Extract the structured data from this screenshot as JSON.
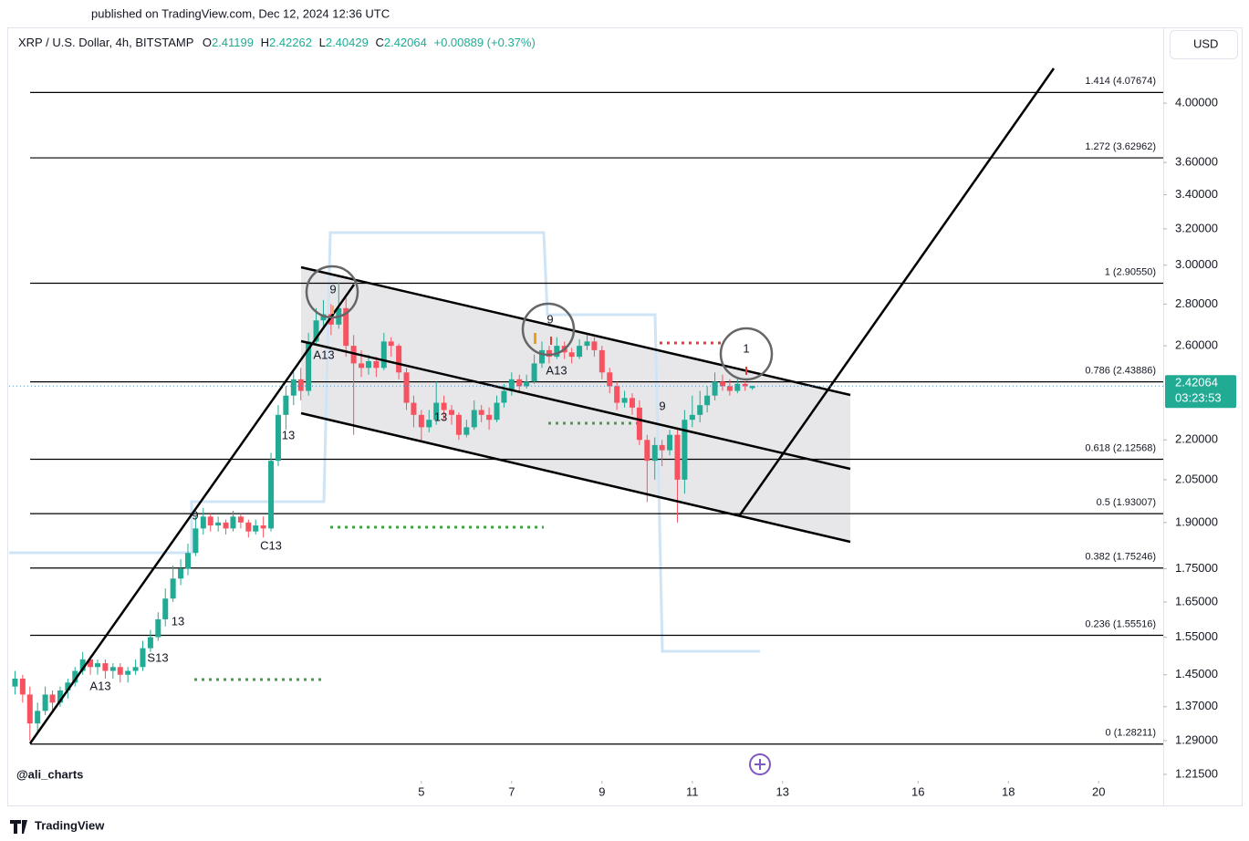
{
  "header": {
    "published": "published on TradingView.com, Dec 12, 2024 12:36 UTC"
  },
  "chart_data": {
    "type": "candlestick",
    "symbol": "XRP / U.S. Dollar, 4h, BITSTAMP",
    "ohlc_letters": [
      "O",
      "H",
      "L",
      "C"
    ],
    "change_label": "+0.00889 (+0.37%)",
    "currency": "USD",
    "countdown": "03:23:53",
    "up_color": "#22ab94",
    "down_color": "#f7525f",
    "log_scale": true,
    "grid": false,
    "xlim": [
      -4.13,
      21.43
    ],
    "xticks": [
      5,
      7,
      9,
      11,
      13,
      16,
      18,
      20
    ],
    "ylim": [
      1.209,
      4.359
    ],
    "yticks": [
      {
        "value": 4,
        "label": "4.00000"
      },
      {
        "value": 3.6,
        "label": "3.60000"
      },
      {
        "value": 3.4,
        "label": "3.40000"
      },
      {
        "value": 3.2,
        "label": "3.20000"
      },
      {
        "value": 3,
        "label": "3.00000"
      },
      {
        "value": 2.8,
        "label": "2.80000"
      },
      {
        "value": 2.6,
        "label": "2.60000"
      },
      {
        "value": 2.2,
        "label": "2.20000"
      },
      {
        "value": 2.05,
        "label": "2.05000"
      },
      {
        "value": 1.9,
        "label": "1.90000"
      },
      {
        "value": 1.75,
        "label": "1.75000"
      },
      {
        "value": 1.65,
        "label": "1.65000"
      },
      {
        "value": 1.55,
        "label": "1.55000"
      },
      {
        "value": 1.45,
        "label": "1.45000"
      },
      {
        "value": 1.37,
        "label": "1.37000"
      },
      {
        "value": 1.29,
        "label": "1.29000"
      },
      {
        "value": 1.215,
        "label": "1.21500"
      }
    ],
    "x": [
      -4,
      -3.83,
      -3.67,
      -3.5,
      -3.33,
      -3.17,
      -3,
      -2.83,
      -2.67,
      -2.5,
      -2.33,
      -2.17,
      -2,
      -1.83,
      -1.67,
      -1.5,
      -1.33,
      -1.17,
      -1,
      -0.83,
      -0.67,
      -0.5,
      -0.33,
      -0.17,
      0,
      0.17,
      0.33,
      0.5,
      0.67,
      0.83,
      1,
      1.17,
      1.33,
      1.5,
      1.67,
      1.83,
      2,
      2.17,
      2.33,
      2.5,
      2.67,
      2.83,
      3,
      3.17,
      3.33,
      3.5,
      3.67,
      3.83,
      4,
      4.17,
      4.33,
      4.5,
      4.67,
      4.83,
      5,
      5.17,
      5.33,
      5.5,
      5.67,
      5.83,
      6,
      6.17,
      6.33,
      6.5,
      6.67,
      6.83,
      7,
      7.17,
      7.33,
      7.5,
      7.67,
      7.83,
      8,
      8.17,
      8.33,
      8.5,
      8.67,
      8.83,
      9,
      9.17,
      9.33,
      9.5,
      9.67,
      9.83,
      10,
      10.17,
      10.33,
      10.5,
      10.67,
      10.83,
      11,
      11.17,
      11.33,
      11.5,
      11.67,
      11.83,
      12,
      12.17,
      12.33
    ],
    "candles": [
      [
        1.42,
        1.46,
        1.4,
        1.44
      ],
      [
        1.44,
        1.45,
        1.38,
        1.4
      ],
      [
        1.4,
        1.42,
        1.29,
        1.33
      ],
      [
        1.33,
        1.38,
        1.31,
        1.36
      ],
      [
        1.36,
        1.42,
        1.35,
        1.4
      ],
      [
        1.4,
        1.41,
        1.36,
        1.38
      ],
      [
        1.38,
        1.42,
        1.37,
        1.41
      ],
      [
        1.41,
        1.44,
        1.39,
        1.43
      ],
      [
        1.43,
        1.47,
        1.42,
        1.46
      ],
      [
        1.46,
        1.51,
        1.45,
        1.49
      ],
      [
        1.49,
        1.5,
        1.45,
        1.47
      ],
      [
        1.47,
        1.49,
        1.45,
        1.48
      ],
      [
        1.48,
        1.49,
        1.44,
        1.46
      ],
      [
        1.46,
        1.48,
        1.44,
        1.47
      ],
      [
        1.47,
        1.48,
        1.43,
        1.45
      ],
      [
        1.45,
        1.47,
        1.43,
        1.46
      ],
      [
        1.46,
        1.49,
        1.45,
        1.47
      ],
      [
        1.47,
        1.54,
        1.46,
        1.52
      ],
      [
        1.52,
        1.57,
        1.51,
        1.55
      ],
      [
        1.55,
        1.62,
        1.54,
        1.6
      ],
      [
        1.6,
        1.69,
        1.58,
        1.66
      ],
      [
        1.66,
        1.76,
        1.65,
        1.72
      ],
      [
        1.72,
        1.78,
        1.7,
        1.75
      ],
      [
        1.75,
        1.83,
        1.73,
        1.8
      ],
      [
        1.8,
        1.92,
        1.79,
        1.88
      ],
      [
        1.88,
        1.95,
        1.86,
        1.92
      ],
      [
        1.92,
        1.93,
        1.87,
        1.89
      ],
      [
        1.89,
        1.92,
        1.87,
        1.9
      ],
      [
        1.9,
        1.91,
        1.86,
        1.88
      ],
      [
        1.88,
        1.94,
        1.87,
        1.92
      ],
      [
        1.92,
        1.93,
        1.88,
        1.9
      ],
      [
        1.9,
        1.91,
        1.85,
        1.87
      ],
      [
        1.87,
        1.91,
        1.86,
        1.89
      ],
      [
        1.89,
        1.92,
        1.85,
        1.88
      ],
      [
        1.88,
        2.15,
        1.87,
        2.12
      ],
      [
        2.12,
        2.34,
        2.1,
        2.3
      ],
      [
        2.3,
        2.42,
        2.24,
        2.38
      ],
      [
        2.38,
        2.48,
        2.34,
        2.45
      ],
      [
        2.45,
        2.5,
        2.36,
        2.4
      ],
      [
        2.4,
        2.66,
        2.38,
        2.62
      ],
      [
        2.62,
        2.78,
        2.6,
        2.72
      ],
      [
        2.72,
        2.82,
        2.68,
        2.75
      ],
      [
        2.75,
        2.8,
        2.65,
        2.7
      ],
      [
        2.7,
        2.91,
        2.68,
        2.78
      ],
      [
        2.78,
        2.84,
        2.55,
        2.6
      ],
      [
        2.6,
        2.65,
        2.22,
        2.52
      ],
      [
        2.52,
        2.58,
        2.46,
        2.5
      ],
      [
        2.5,
        2.56,
        2.47,
        2.53
      ],
      [
        2.53,
        2.55,
        2.46,
        2.5
      ],
      [
        2.5,
        2.66,
        2.49,
        2.62
      ],
      [
        2.62,
        2.64,
        2.55,
        2.6
      ],
      [
        2.6,
        2.61,
        2.45,
        2.48
      ],
      [
        2.48,
        2.5,
        2.32,
        2.35
      ],
      [
        2.35,
        2.38,
        2.25,
        2.3
      ],
      [
        2.3,
        2.32,
        2.19,
        2.25
      ],
      [
        2.25,
        2.32,
        2.23,
        2.28
      ],
      [
        2.28,
        2.44,
        2.26,
        2.35
      ],
      [
        2.35,
        2.38,
        2.28,
        2.32
      ],
      [
        2.32,
        2.34,
        2.26,
        2.3
      ],
      [
        2.3,
        2.31,
        2.2,
        2.22
      ],
      [
        2.22,
        2.28,
        2.21,
        2.25
      ],
      [
        2.25,
        2.36,
        2.24,
        2.32
      ],
      [
        2.32,
        2.34,
        2.27,
        2.3
      ],
      [
        2.3,
        2.33,
        2.24,
        2.28
      ],
      [
        2.28,
        2.38,
        2.27,
        2.35
      ],
      [
        2.35,
        2.43,
        2.33,
        2.4
      ],
      [
        2.4,
        2.48,
        2.38,
        2.45
      ],
      [
        2.45,
        2.47,
        2.4,
        2.42
      ],
      [
        2.42,
        2.47,
        2.41,
        2.44
      ],
      [
        2.44,
        2.56,
        2.43,
        2.52
      ],
      [
        2.52,
        2.62,
        2.5,
        2.58
      ],
      [
        2.58,
        2.6,
        2.52,
        2.55
      ],
      [
        2.55,
        2.64,
        2.54,
        2.6
      ],
      [
        2.6,
        2.62,
        2.54,
        2.57
      ],
      [
        2.57,
        2.59,
        2.52,
        2.55
      ],
      [
        2.55,
        2.63,
        2.54,
        2.6
      ],
      [
        2.6,
        2.66,
        2.58,
        2.62
      ],
      [
        2.62,
        2.64,
        2.55,
        2.58
      ],
      [
        2.58,
        2.6,
        2.45,
        2.48
      ],
      [
        2.48,
        2.5,
        2.39,
        2.42
      ],
      [
        2.42,
        2.44,
        2.32,
        2.35
      ],
      [
        2.35,
        2.4,
        2.33,
        2.37
      ],
      [
        2.37,
        2.39,
        2.3,
        2.33
      ],
      [
        2.33,
        2.36,
        2.18,
        2.2
      ],
      [
        2.2,
        2.22,
        1.97,
        2.12
      ],
      [
        2.12,
        2.21,
        2.05,
        2.18
      ],
      [
        2.18,
        2.2,
        2.1,
        2.16
      ],
      [
        2.16,
        2.24,
        2.14,
        2.22
      ],
      [
        2.22,
        2.25,
        1.9,
        2.05
      ],
      [
        2.05,
        2.32,
        2,
        2.28
      ],
      [
        2.28,
        2.38,
        2.25,
        2.3
      ],
      [
        2.3,
        2.4,
        2.27,
        2.34
      ],
      [
        2.34,
        2.42,
        2.31,
        2.38
      ],
      [
        2.38,
        2.48,
        2.36,
        2.44
      ],
      [
        2.44,
        2.47,
        2.4,
        2.42
      ],
      [
        2.42,
        2.45,
        2.38,
        2.4
      ],
      [
        2.4,
        2.46,
        2.39,
        2.43
      ],
      [
        2.43,
        2.44,
        2.4,
        2.42
      ],
      [
        2.41199,
        2.42262,
        2.40429,
        2.42064
      ]
    ],
    "fib_levels": [
      {
        "value": 4.07674,
        "label": "1.414 (4.07674)"
      },
      {
        "value": 3.62962,
        "label": "1.272 (3.62962)"
      },
      {
        "value": 2.9055,
        "label": "1 (2.90550)"
      },
      {
        "value": 2.43886,
        "label": "0.786 (2.43886)"
      },
      {
        "value": 2.12568,
        "label": "0.618 (2.12568)"
      },
      {
        "value": 1.93007,
        "label": "0.5 (1.93007)"
      },
      {
        "value": 1.75246,
        "label": "0.382 (1.75246)"
      },
      {
        "value": 1.55516,
        "label": "0.236 (1.55516)"
      },
      {
        "value": 1.28211,
        "label": "0 (1.28211)"
      }
    ],
    "annotations": [
      "A13",
      "S13",
      "13",
      "9",
      "C13",
      "13",
      "A13",
      "13",
      "A13",
      "9",
      "9",
      "9",
      "1"
    ]
  },
  "watermark": "@ali_charts",
  "footer": "TradingView"
}
